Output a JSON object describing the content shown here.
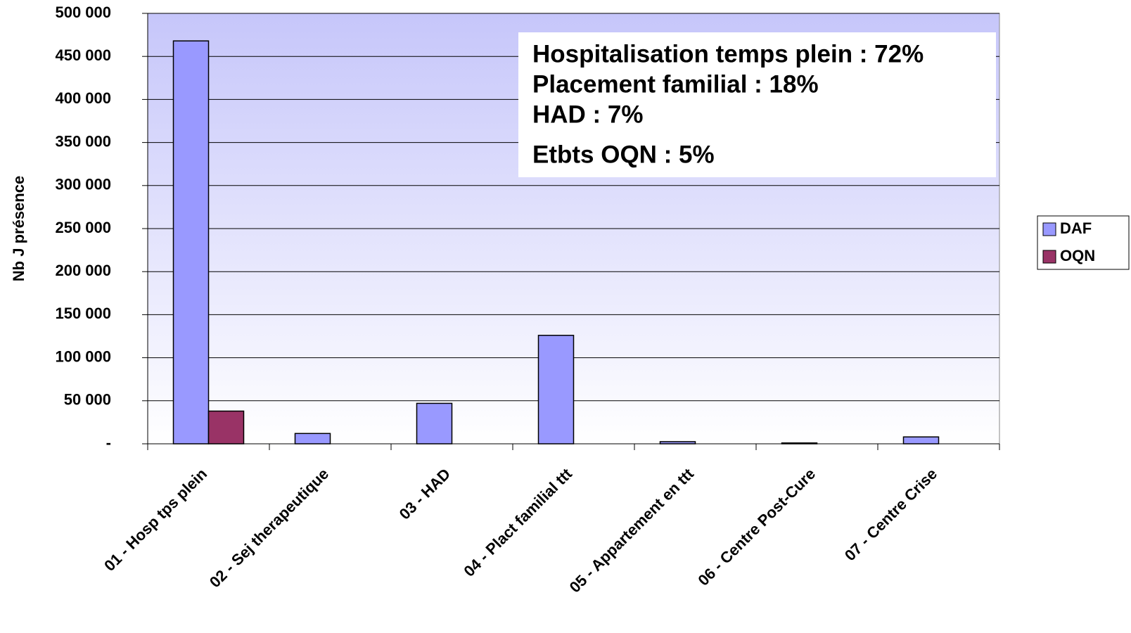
{
  "chart_data": {
    "type": "bar",
    "y_label": "Nb J présence",
    "categories": [
      "01 - Hosp tps plein",
      "02 - Sej therapeutique",
      "03 - HAD",
      "04 - Plact familial ttt",
      "05 - Appartement en ttt",
      "06 - Centre Post-Cure",
      "07 - Centre Crise"
    ],
    "series": [
      {
        "name": "DAF",
        "color": "#9999ff",
        "values": [
          468000,
          12000,
          47000,
          126000,
          2500,
          1000,
          8000
        ]
      },
      {
        "name": "OQN",
        "color": "#993366",
        "values": [
          38000,
          0,
          0,
          0,
          0,
          0,
          0
        ]
      }
    ],
    "ylim": [
      0,
      500000
    ],
    "yticks": [
      {
        "value": 0,
        "label": "-"
      },
      {
        "value": 50000,
        "label": "50 000"
      },
      {
        "value": 100000,
        "label": "100 000"
      },
      {
        "value": 150000,
        "label": "150 000"
      },
      {
        "value": 200000,
        "label": "200 000"
      },
      {
        "value": 250000,
        "label": "250 000"
      },
      {
        "value": 300000,
        "label": "300 000"
      },
      {
        "value": 350000,
        "label": "350 000"
      },
      {
        "value": 400000,
        "label": "400 000"
      },
      {
        "value": 450000,
        "label": "450 000"
      },
      {
        "value": {
          "value": 500000
        },
        "label": "500 000"
      }
    ],
    "grid": true,
    "legend": "right",
    "annotations": [
      "Hospitalisation temps plein : 72%",
      "Placement familial : 18%",
      "HAD : 7%",
      "Etbts OQN : 5%"
    ]
  }
}
